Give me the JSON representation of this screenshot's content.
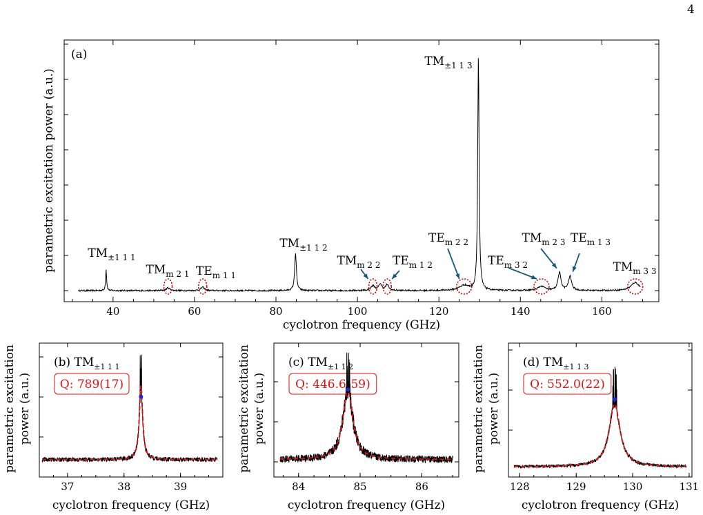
{
  "page_number": "4",
  "colors": {
    "trace": "#000000",
    "circle": "#cc0000",
    "arrow": "#0e5a78",
    "fit": "#dd1111",
    "peak_marker": "#2222dd",
    "q_box": "#dd1111"
  },
  "chart_data": [
    {
      "type": "line",
      "panel": "(a)",
      "xlabel": "cyclotron frequency (GHz)",
      "ylabel": "parametric excitation power (a.u.)",
      "xlim": [
        28,
        174
      ],
      "ylim": [
        0,
        1
      ],
      "xticks": [
        40,
        60,
        80,
        100,
        120,
        140,
        160
      ],
      "x_range": [
        31.5,
        169.5
      ],
      "baseline": 0.02,
      "noise": 0.003,
      "peaks": [
        {
          "x": 38.3,
          "h": 0.09,
          "w": 0.15
        },
        {
          "x": 53.5,
          "h": 0.012,
          "w": 0.5
        },
        {
          "x": 62.0,
          "h": 0.015,
          "w": 0.5
        },
        {
          "x": 84.8,
          "h": 0.16,
          "w": 0.25
        },
        {
          "x": 103.8,
          "h": 0.02,
          "w": 0.6
        },
        {
          "x": 105.6,
          "h": 0.028,
          "w": 0.4
        },
        {
          "x": 107.3,
          "h": 0.024,
          "w": 0.5
        },
        {
          "x": 126.2,
          "h": 0.022,
          "w": 1.4
        },
        {
          "x": 129.7,
          "h": 1.0,
          "w": 0.2
        },
        {
          "x": 145.2,
          "h": 0.018,
          "w": 1.0
        },
        {
          "x": 149.6,
          "h": 0.075,
          "w": 0.45
        },
        {
          "x": 152.2,
          "h": 0.06,
          "w": 0.45
        },
        {
          "x": 168.2,
          "h": 0.035,
          "w": 1.2
        }
      ],
      "annotations": [
        {
          "label": "TM",
          "sub": "±1 1 1",
          "x": 38.3
        },
        {
          "label": "TM",
          "sub": "m 2 1",
          "x": 53.5,
          "circled": true
        },
        {
          "label": "TE",
          "sub": "m 1 1",
          "x": 62.0,
          "circled": true
        },
        {
          "label": "TM",
          "sub": "±1 1 2",
          "x": 84.8
        },
        {
          "label": "TM",
          "sub": "m 2 2",
          "x": 103.8,
          "circled": true,
          "arrow": true
        },
        {
          "label": "TE",
          "sub": "m 1 2",
          "x": 107.3,
          "circled": true,
          "arrow": true
        },
        {
          "label": "TE",
          "sub": "m 2 2",
          "x": 126.2,
          "circled": true,
          "arrow": true
        },
        {
          "label": "TM",
          "sub": "±1 1 3",
          "x": 129.7
        },
        {
          "label": "TE",
          "sub": "m 3 2",
          "x": 145.2,
          "circled": true,
          "arrow": true
        },
        {
          "label": "TM",
          "sub": "m 2 3",
          "x": 149.6,
          "arrow": true
        },
        {
          "label": "TE",
          "sub": "m 1 3",
          "x": 152.2,
          "arrow": true
        },
        {
          "label": "TM",
          "sub": "m 3 3",
          "x": 168.2,
          "circled": true
        }
      ]
    },
    {
      "type": "line",
      "panel": "(b)",
      "mode": "TM",
      "mode_sub": "±1 1 1",
      "q": "Q: 789(17)",
      "xlabel": "cyclotron frequency (GHz)",
      "ylabel": "parametric excitation\npower (a.u.)",
      "xlim": [
        36.5,
        39.75
      ],
      "xticks": [
        37,
        38,
        39
      ],
      "x_range": [
        36.55,
        39.65
      ],
      "peak_x": 38.3,
      "peak_h": 0.63,
      "peak_w": 0.035,
      "baseline": 0.1,
      "noise": 0.018,
      "marker_y": 0.63,
      "ylim": [
        0,
        1
      ]
    },
    {
      "type": "line",
      "panel": "(c)",
      "mode": "TM",
      "mode_sub": "±1 1 2",
      "q": "Q: 446.6(59)",
      "xlabel": "cyclotron frequency (GHz)",
      "ylabel": "parametric excitation\npower (a.u.)",
      "xlim": [
        83.6,
        86.6
      ],
      "xticks": [
        84,
        85,
        86
      ],
      "x_range": [
        83.7,
        86.5
      ],
      "peak_x": 84.8,
      "peak_h": 0.6,
      "peak_w": 0.095,
      "baseline": 0.1,
      "noise": 0.03,
      "marker_y": 0.69,
      "ylim": [
        0,
        1
      ]
    },
    {
      "type": "line",
      "panel": "(d)",
      "mode": "TM",
      "mode_sub": "±1 1 3",
      "q": "Q: 552.0(22)",
      "xlabel": "cyclotron frequency (GHz)",
      "ylabel": "parametric excitation\npower (a.u.)",
      "xlim": [
        127.8,
        131.05
      ],
      "xticks": [
        128,
        129,
        130,
        131
      ],
      "x_range": [
        127.9,
        130.95
      ],
      "peak_x": 129.68,
      "peak_h": 0.53,
      "peak_w": 0.115,
      "baseline": 0.04,
      "noise": 0.012,
      "marker_y": 0.61,
      "ylim": [
        0,
        1
      ]
    }
  ]
}
